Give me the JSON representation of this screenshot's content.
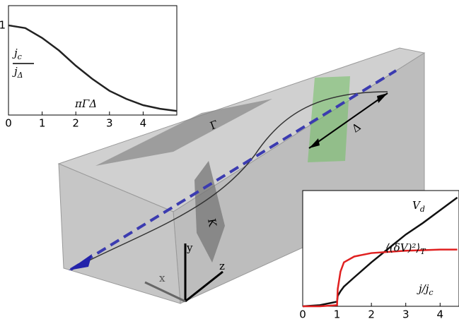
{
  "chart_data": [
    {
      "type": "line",
      "y_label": {
        "numerator": {
          "base": "j",
          "sub": "c"
        },
        "denominator": {
          "base": "j",
          "sub": "Δ"
        }
      },
      "x_label": "πΓΔ",
      "x": [
        0,
        0.5,
        1,
        1.5,
        2,
        2.5,
        3,
        3.5,
        4,
        4.5,
        5
      ],
      "series": [
        {
          "color": "#222222",
          "values": [
            1,
            0.97,
            0.86,
            0.72,
            0.55,
            0.4,
            0.27,
            0.18,
            0.11,
            0.07,
            0.045
          ]
        }
      ],
      "xlim": [
        0,
        5
      ],
      "ylim": [
        0,
        1.22
      ],
      "xticks": [
        0,
        1,
        2,
        3,
        4
      ],
      "yticks": [
        1
      ]
    },
    {
      "type": "line",
      "x_label": {
        "base": "j/j",
        "sub": "c"
      },
      "x": [
        0,
        0.5,
        1,
        1.02,
        1.1,
        1.2,
        1.5,
        2,
        2.5,
        3,
        3.5,
        4,
        4.5
      ],
      "series": [
        {
          "label": {
            "base": "V",
            "sub": "d"
          },
          "color": "#111111",
          "values": [
            0,
            0.01,
            0.04,
            0.09,
            0.13,
            0.17,
            0.25,
            0.38,
            0.5,
            0.62,
            0.72,
            0.83,
            0.94
          ]
        },
        {
          "label": {
            "base": "⟨(δV)²⟩",
            "sub": "T"
          },
          "color": "#e02020",
          "values": [
            0,
            0,
            0.01,
            0.15,
            0.3,
            0.38,
            0.43,
            0.46,
            0.47,
            0.48,
            0.485,
            0.49,
            0.49
          ]
        }
      ],
      "xlim": [
        0,
        4.55
      ],
      "ylim": [
        0,
        1
      ],
      "xticks": [
        0,
        1,
        2,
        3,
        4
      ]
    }
  ],
  "illustration": {
    "labels": {
      "gamma": "Γ",
      "kappa": "K",
      "delta": "Δ",
      "x": "x",
      "y": "y",
      "z": "z"
    }
  }
}
